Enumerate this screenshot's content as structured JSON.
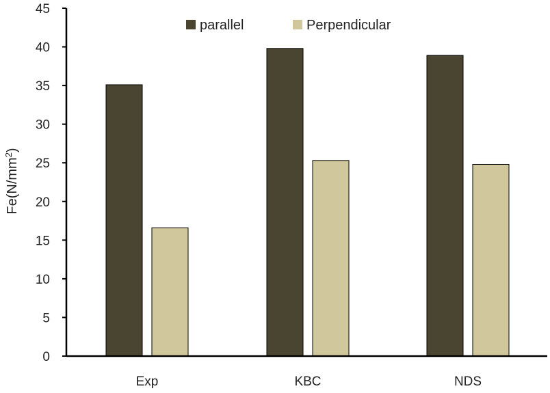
{
  "chart_data": {
    "type": "bar",
    "title": "",
    "xlabel": "",
    "ylabel": "Fe(N/mm",
    "ylabel_superscript": "2",
    "ylabel_close": ")",
    "categories": [
      "Exp",
      "KBC",
      "NDS"
    ],
    "series": [
      {
        "name": "parallel",
        "color": "#4a4530",
        "values": [
          35.1,
          39.8,
          38.9
        ]
      },
      {
        "name": "Perpendicular",
        "color": "#d0c89c",
        "values": [
          16.6,
          25.3,
          24.8
        ]
      }
    ],
    "ylim": [
      0,
      45
    ],
    "yticks": [
      0,
      5,
      10,
      15,
      20,
      25,
      30,
      35,
      40,
      45
    ],
    "grid": false,
    "legend_position": "top"
  }
}
